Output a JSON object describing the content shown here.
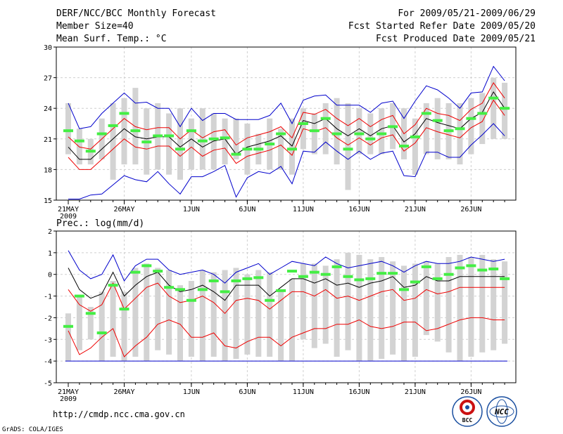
{
  "header": {
    "title": "DERF/NCC/BCC Monthly Forecast",
    "member_size": "Member Size=40",
    "variable": "Mean Surf. Temp.: °C",
    "period": "For 2009/05/21-2009/06/29",
    "started": "Fcst Started Refer Date 2009/05/20",
    "produced": "Fcst Produced Date 2009/05/21"
  },
  "footer": {
    "url": "http://cmdp.ncc.cma.gov.cn",
    "credit": "GrADS: COLA/IGES",
    "logo_bcc_text": "BCC",
    "logo_ncc_text": "NCC"
  },
  "colors": {
    "box": "#d3d3d3",
    "median": "#44ee44",
    "mean": "#000000",
    "spread": "#ee0000",
    "envelope": "#0000cc",
    "floor": "#0000cc"
  },
  "chart_data": [
    {
      "type": "box-ensemble",
      "title": "Mean Surf. Temp.: °C",
      "ylim": [
        15,
        30
      ],
      "yticks": [
        15,
        18,
        21,
        24,
        27,
        30
      ],
      "x_ticks": [
        {
          "day": 0,
          "label": "21MAY"
        },
        {
          "day": 5,
          "label": "26MAY"
        },
        {
          "day": 11,
          "label": "1JUN"
        },
        {
          "day": 16,
          "label": "6JUN"
        },
        {
          "day": 21,
          "label": "11JUN"
        },
        {
          "day": 26,
          "label": "16JUN"
        },
        {
          "day": 31,
          "label": "21JUN"
        },
        {
          "day": 36,
          "label": "26JUN"
        }
      ],
      "year_label": "2009",
      "box_top": [
        24.5,
        22.0,
        21.0,
        23.0,
        24.5,
        25.0,
        26.0,
        24.0,
        24.5,
        23.5,
        24.0,
        23.0,
        24.0,
        23.5,
        23.0,
        23.0,
        22.5,
        21.5,
        23.0,
        22.0,
        23.0,
        24.0,
        23.5,
        24.5,
        25.0,
        24.5,
        24.0,
        23.5,
        24.0,
        24.5,
        24.0,
        23.0,
        24.5,
        25.0,
        24.5,
        24.5,
        25.0,
        25.5,
        27.0,
        26.5
      ],
      "box_bottom": [
        19.5,
        18.5,
        18.5,
        19.0,
        17.0,
        18.5,
        18.5,
        17.5,
        18.0,
        17.5,
        17.0,
        18.0,
        18.0,
        18.0,
        18.5,
        19.0,
        17.5,
        18.5,
        18.0,
        18.0,
        17.5,
        20.0,
        19.5,
        19.5,
        18.5,
        16.0,
        19.5,
        19.5,
        19.5,
        20.0,
        19.0,
        17.5,
        19.5,
        19.0,
        19.0,
        18.5,
        19.5,
        20.5,
        21.0,
        21.0
      ],
      "median": [
        21.8,
        20.8,
        19.8,
        21.5,
        22.3,
        23.5,
        21.8,
        20.7,
        21.3,
        21.3,
        20.0,
        21.8,
        20.8,
        21.0,
        21.1,
        19.5,
        20.0,
        20.0,
        20.5,
        21.5,
        20.0,
        22.5,
        21.8,
        23.0,
        21.5,
        20.0,
        21.5,
        21.0,
        21.5,
        22.2,
        20.3,
        21.2,
        23.5,
        22.8,
        21.8,
        22.0,
        23.0,
        23.5,
        25.0,
        24.0
      ],
      "mean": [
        20.2,
        19.0,
        19.0,
        20.0,
        21.0,
        22.0,
        21.2,
        21.0,
        21.2,
        21.2,
        20.2,
        21.0,
        20.2,
        20.8,
        21.0,
        19.5,
        20.2,
        20.5,
        20.8,
        21.3,
        20.3,
        22.8,
        22.5,
        23.0,
        22.0,
        21.3,
        22.0,
        21.3,
        22.0,
        22.3,
        20.7,
        21.5,
        23.0,
        22.6,
        22.3,
        22.0,
        23.0,
        23.6,
        25.6,
        24.0
      ],
      "upper": [
        21.2,
        20.2,
        20.0,
        21.0,
        22.0,
        23.0,
        22.2,
        21.9,
        22.1,
        22.1,
        21.0,
        21.9,
        21.1,
        21.7,
        21.9,
        20.4,
        21.1,
        21.4,
        21.7,
        22.2,
        21.1,
        23.6,
        23.4,
        23.9,
        23.0,
        22.3,
        23.0,
        22.2,
        22.9,
        23.3,
        21.5,
        22.4,
        24.0,
        23.5,
        23.3,
        22.8,
        23.9,
        24.5,
        26.5,
        25.0
      ],
      "lower": [
        19.2,
        18.0,
        18.0,
        19.0,
        20.0,
        21.0,
        20.2,
        20.0,
        20.3,
        20.3,
        19.3,
        20.2,
        19.3,
        19.9,
        20.1,
        18.6,
        19.3,
        19.6,
        19.9,
        20.4,
        19.4,
        22.0,
        21.7,
        22.1,
        21.1,
        20.4,
        21.1,
        20.4,
        21.1,
        21.4,
        19.8,
        20.6,
        22.1,
        21.7,
        21.4,
        21.1,
        22.1,
        22.7,
        24.8,
        23.3
      ],
      "env_max": [
        24.5,
        22.0,
        22.2,
        23.5,
        24.5,
        25.5,
        24.5,
        24.6,
        24.0,
        24.0,
        22.2,
        24.0,
        22.8,
        23.5,
        23.5,
        22.9,
        22.9,
        22.9,
        23.3,
        24.5,
        22.5,
        24.8,
        25.2,
        25.3,
        24.3,
        24.3,
        24.3,
        23.6,
        24.5,
        24.7,
        23.0,
        24.7,
        26.2,
        25.8,
        25.0,
        24.0,
        25.5,
        25.6,
        28.1,
        26.7
      ],
      "env_min": [
        15.1,
        15.1,
        15.5,
        15.6,
        16.5,
        17.4,
        17.0,
        16.8,
        17.8,
        16.6,
        15.6,
        17.3,
        17.3,
        17.8,
        18.4,
        15.3,
        17.2,
        17.8,
        17.6,
        18.3,
        16.6,
        19.8,
        19.7,
        20.7,
        19.8,
        19.0,
        19.8,
        19.0,
        19.6,
        19.8,
        17.4,
        17.3,
        19.7,
        19.7,
        19.2,
        19.2,
        20.4,
        21.4,
        22.5,
        21.3
      ]
    },
    {
      "type": "box-ensemble",
      "title": "Prec.: log(mm/d)",
      "ylim": [
        -5,
        2
      ],
      "yticks": [
        -5,
        -4,
        -3,
        -2,
        -1,
        0,
        1,
        2
      ],
      "x_ticks": [
        {
          "day": 0,
          "label": "21MAY"
        },
        {
          "day": 5,
          "label": "26MAY"
        },
        {
          "day": 11,
          "label": "1JUN"
        },
        {
          "day": 16,
          "label": "6JUN"
        },
        {
          "day": 21,
          "label": "11JUN"
        },
        {
          "day": 26,
          "label": "16JUN"
        },
        {
          "day": 31,
          "label": "21JUN"
        },
        {
          "day": 36,
          "label": "26JUN"
        }
      ],
      "year_label": "2009",
      "floor_value": -4,
      "box_top": [
        -1.8,
        -1.0,
        -1.5,
        -0.8,
        -0.3,
        -0.8,
        0.3,
        0.5,
        0.3,
        0.2,
        -0.5,
        -0.3,
        0.2,
        0.1,
        0.2,
        0.3,
        0.0,
        0.2,
        0.1,
        -0.7,
        -0.2,
        0.5,
        0.5,
        0.4,
        0.7,
        1.0,
        0.9,
        0.7,
        0.8,
        0.6,
        0.4,
        0.5,
        0.6,
        0.5,
        0.8,
        0.9,
        0.8,
        0.9,
        0.7,
        0.6
      ],
      "box_bottom": [
        -4.0,
        -3.5,
        -3.0,
        -4.0,
        -3.8,
        -4.0,
        -3.8,
        -4.0,
        -3.5,
        -3.7,
        -4.0,
        -3.8,
        -4.0,
        -3.8,
        -4.0,
        -3.9,
        -3.7,
        -3.8,
        -3.8,
        -4.0,
        -4.0,
        -3.0,
        -3.4,
        -3.2,
        -3.8,
        -3.5,
        -4.0,
        -4.0,
        -3.9,
        -3.7,
        -4.0,
        -3.8,
        -2.8,
        -3.1,
        -3.6,
        -4.0,
        -3.8,
        -3.6,
        -3.5,
        -3.2
      ],
      "median": [
        -2.4,
        -1.0,
        -1.8,
        -2.7,
        -0.5,
        -1.6,
        0.1,
        0.4,
        0.15,
        -0.6,
        -0.7,
        -1.2,
        -0.7,
        -0.3,
        -0.8,
        -0.3,
        -0.2,
        -0.15,
        -1.2,
        -0.75,
        0.15,
        -0.1,
        0.1,
        0.0,
        0.35,
        -0.1,
        -0.25,
        -0.2,
        0.05,
        0.05,
        -0.7,
        -0.35,
        0.35,
        -0.2,
        0.0,
        0.3,
        0.4,
        0.2,
        0.25,
        -0.2
      ],
      "mean": [
        0.3,
        -0.7,
        -1.1,
        -0.9,
        0.1,
        -1.0,
        -0.5,
        -0.1,
        0.1,
        -0.5,
        -0.8,
        -0.7,
        -0.5,
        -0.8,
        -1.2,
        -0.5,
        -0.5,
        -0.5,
        -1.0,
        -0.6,
        -0.2,
        -0.2,
        -0.4,
        -0.2,
        -0.5,
        -0.4,
        -0.6,
        -0.4,
        -0.3,
        -0.1,
        -0.6,
        -0.5,
        -0.1,
        -0.3,
        -0.3,
        -0.1,
        -0.1,
        -0.1,
        -0.1,
        -0.1
      ],
      "upper": [
        -0.7,
        -1.4,
        -1.7,
        -1.4,
        -0.4,
        -1.6,
        -1.1,
        -0.6,
        -0.4,
        -1.0,
        -1.3,
        -1.2,
        -1.0,
        -1.3,
        -1.8,
        -1.2,
        -1.1,
        -1.2,
        -1.6,
        -1.2,
        -0.8,
        -0.8,
        -1.0,
        -0.7,
        -1.1,
        -1.0,
        -1.2,
        -1.0,
        -0.8,
        -0.7,
        -1.2,
        -1.1,
        -0.7,
        -0.9,
        -0.8,
        -0.6,
        -0.6,
        -0.6,
        -0.6,
        -0.6
      ],
      "lower": [
        -2.6,
        -3.7,
        -3.4,
        -2.9,
        -2.5,
        -3.8,
        -3.3,
        -2.9,
        -2.3,
        -2.1,
        -2.3,
        -2.9,
        -2.9,
        -2.7,
        -3.3,
        -3.4,
        -3.1,
        -2.9,
        -2.9,
        -3.3,
        -2.9,
        -2.7,
        -2.5,
        -2.5,
        -2.3,
        -2.3,
        -2.1,
        -2.4,
        -2.5,
        -2.4,
        -2.2,
        -2.2,
        -2.6,
        -2.5,
        -2.3,
        -2.1,
        -2.0,
        -2.0,
        -2.1,
        -2.1
      ],
      "env_max": [
        1.1,
        0.2,
        -0.2,
        0.0,
        0.9,
        -0.3,
        0.4,
        0.7,
        0.7,
        0.2,
        0.0,
        0.1,
        0.2,
        0.0,
        -0.4,
        0.1,
        0.3,
        0.5,
        0.0,
        0.3,
        0.6,
        0.5,
        0.4,
        0.8,
        0.5,
        0.3,
        0.4,
        0.5,
        0.6,
        0.4,
        0.1,
        0.4,
        0.6,
        0.5,
        0.5,
        0.6,
        0.8,
        0.7,
        0.6,
        0.7
      ]
    }
  ]
}
